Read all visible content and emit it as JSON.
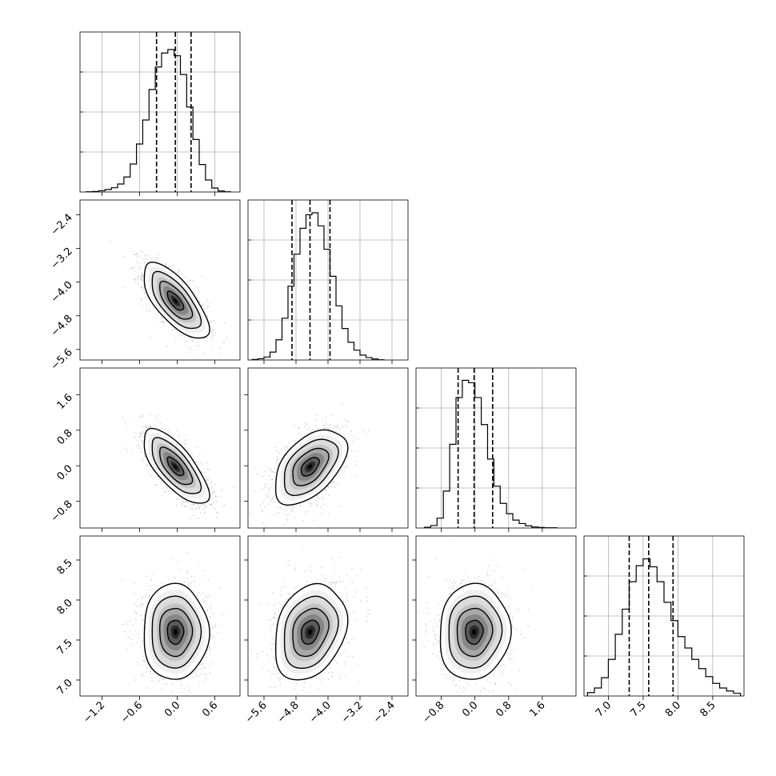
{
  "chart_data": {
    "type": "corner",
    "parameters": [
      {
        "index": 0,
        "xlim": [
          -1.55,
          1.0
        ],
        "ticks": [
          -1.2,
          -0.6,
          0.0,
          0.6
        ],
        "tick_labels": [
          "−1.2",
          "−0.6",
          "0.0",
          "0.6"
        ],
        "hist_edges": [
          -1.45,
          -1.35,
          -1.25,
          -1.15,
          -1.05,
          -0.95,
          -0.85,
          -0.75,
          -0.65,
          -0.55,
          -0.45,
          -0.35,
          -0.25,
          -0.15,
          -0.05,
          0.05,
          0.15,
          0.25,
          0.35,
          0.45,
          0.55,
          0.65,
          0.75,
          0.85
        ],
        "hist_counts": [
          1,
          2,
          5,
          10,
          17,
          32,
          60,
          112,
          192,
          288,
          410,
          500,
          556,
          570,
          545,
          470,
          340,
          210,
          110,
          48,
          16,
          4,
          1
        ],
        "hist_ymax": 640,
        "quantiles": [
          -0.33,
          -0.03,
          0.22
        ]
      },
      {
        "index": 1,
        "xlim": [
          -6.0,
          -2.0
        ],
        "ticks": [
          -5.6,
          -4.8,
          -4.0,
          -3.2,
          -2.4
        ],
        "tick_labels": [
          "−5.6",
          "−4.8",
          "−4.0",
          "−3.2",
          "−2.4"
        ],
        "hist_edges": [
          -5.9,
          -5.75,
          -5.6,
          -5.45,
          -5.3,
          -5.15,
          -5.0,
          -4.85,
          -4.7,
          -4.55,
          -4.4,
          -4.25,
          -4.1,
          -3.95,
          -3.8,
          -3.65,
          -3.5,
          -3.35,
          -3.2,
          -3.05,
          -2.9,
          -2.75,
          -2.6
        ],
        "hist_counts": [
          2,
          5,
          12,
          32,
          82,
          170,
          300,
          430,
          535,
          590,
          598,
          545,
          450,
          340,
          220,
          128,
          72,
          40,
          20,
          10,
          4,
          1
        ],
        "hist_ymax": 650,
        "quantiles": [
          -4.9,
          -4.45,
          -3.95
        ]
      },
      {
        "index": 2,
        "xlim": [
          -1.4,
          2.4
        ],
        "ticks": [
          -0.8,
          0.0,
          0.8,
          1.6
        ],
        "tick_labels": [
          "−0.8",
          "0.0",
          "0.8",
          "1.6"
        ],
        "hist_edges": [
          -1.2,
          -1.05,
          -0.9,
          -0.75,
          -0.6,
          -0.45,
          -0.3,
          -0.15,
          0.0,
          0.15,
          0.3,
          0.45,
          0.6,
          0.75,
          0.9,
          1.05,
          1.2,
          1.35,
          1.5,
          1.65,
          1.8,
          1.95
        ],
        "hist_counts": [
          3,
          10,
          40,
          150,
          340,
          530,
          600,
          590,
          530,
          420,
          280,
          170,
          100,
          58,
          32,
          18,
          9,
          4,
          2,
          1,
          1
        ],
        "hist_ymax": 650,
        "quantiles": [
          -0.4,
          -0.02,
          0.42
        ]
      },
      {
        "index": 3,
        "xlim": [
          6.65,
          8.95
        ],
        "ticks": [
          7.0,
          7.5,
          8.0,
          8.5
        ],
        "tick_labels": [
          "7.0",
          "7.5",
          "8.0",
          "8.5"
        ],
        "hist_edges": [
          6.7,
          6.8,
          6.9,
          7.0,
          7.1,
          7.2,
          7.3,
          7.4,
          7.5,
          7.6,
          7.7,
          7.8,
          7.9,
          8.0,
          8.1,
          8.2,
          8.3,
          8.4,
          8.5,
          8.6,
          8.7,
          8.8,
          8.9
        ],
        "hist_counts": [
          15,
          35,
          80,
          160,
          270,
          380,
          500,
          570,
          600,
          565,
          500,
          410,
          330,
          260,
          210,
          160,
          120,
          85,
          55,
          35,
          22,
          12
        ],
        "hist_ymax": 700,
        "quantiles": [
          7.3,
          7.58,
          7.93
        ]
      }
    ],
    "pairs": [
      {
        "xi": 0,
        "yi": 1,
        "mean": [
          -0.03,
          -4.45
        ],
        "sd": [
          0.26,
          0.45
        ],
        "rho": -0.7
      },
      {
        "xi": 0,
        "yi": 2,
        "mean": [
          -0.03,
          -0.02
        ],
        "sd": [
          0.26,
          0.42
        ],
        "rho": -0.72
      },
      {
        "xi": 1,
        "yi": 2,
        "mean": [
          -4.45,
          -0.02
        ],
        "sd": [
          0.45,
          0.42
        ],
        "rho": 0.5
      },
      {
        "xi": 0,
        "yi": 3,
        "mean": [
          -0.03,
          7.6
        ],
        "sd": [
          0.26,
          0.3
        ],
        "rho": 0.0
      },
      {
        "xi": 1,
        "yi": 3,
        "mean": [
          -4.45,
          7.6
        ],
        "sd": [
          0.45,
          0.3
        ],
        "rho": 0.25
      },
      {
        "xi": 2,
        "yi": 3,
        "mean": [
          -0.02,
          7.6
        ],
        "sd": [
          0.42,
          0.3
        ],
        "rho": 0.05
      }
    ],
    "row_ylim": {
      "1": [
        -5.85,
        -2.05
      ],
      "2": [
        -1.4,
        2.2
      ],
      "3": [
        6.8,
        8.8
      ]
    },
    "contour_levels_sigma": [
      0.5,
      1.0,
      1.5,
      2.0
    ],
    "colors": {
      "line": "#000000",
      "grid": "#b0b0b0",
      "points": "#7f7f7f"
    },
    "grid": true
  }
}
